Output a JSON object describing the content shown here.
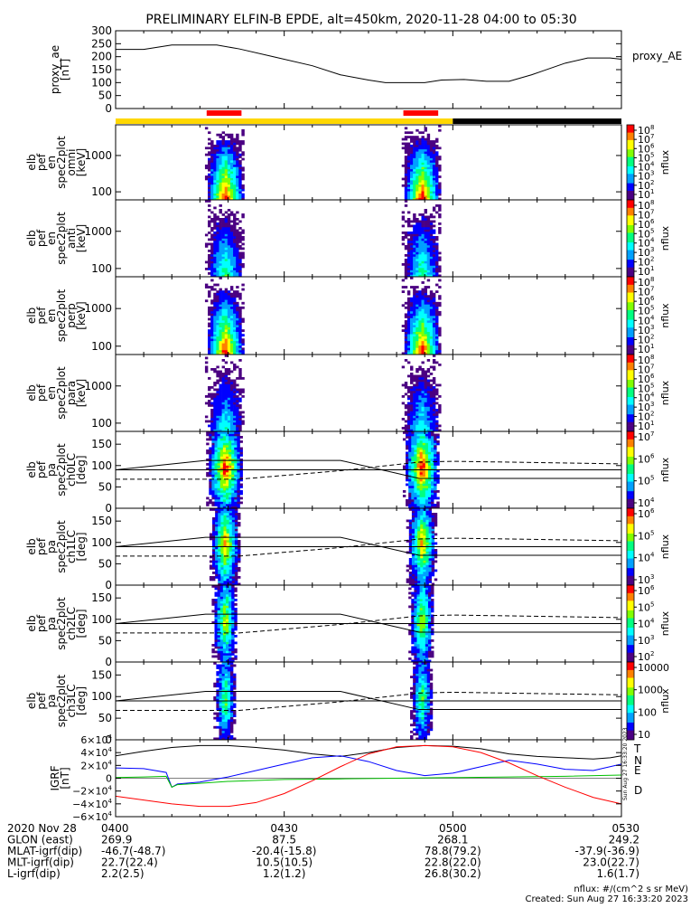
{
  "title": "PRELIMINARY ELFIN-B EPDE, alt=450km, 2020-11-28 04:00 to 05:30",
  "colors": {
    "axis": "#000000",
    "science_zone": "#ff0000",
    "bar_yellow": "#ffd700",
    "bar_black": "#000000",
    "T": "#000000",
    "N": "#0000ff",
    "E": "#00c000",
    "D": "#ff0000",
    "colorbar": [
      "#4b0082",
      "#0000ff",
      "#00a0ff",
      "#00ffff",
      "#00ff80",
      "#80ff00",
      "#ffff00",
      "#ff8000",
      "#ff0000"
    ]
  },
  "time_axis": {
    "start": "04:00",
    "end": "05:30",
    "ticks": [
      {
        "t": 0,
        "label": "0400"
      },
      {
        "t": 30,
        "label": "0430"
      },
      {
        "t": 60,
        "label": "0500"
      },
      {
        "t": 90,
        "label": "0530"
      }
    ]
  },
  "bars": {
    "state": [
      {
        "t0": 0,
        "t1": 60,
        "color": "yellow"
      },
      {
        "t0": 60,
        "t1": 90,
        "color": "black"
      }
    ],
    "science": [
      {
        "t0": 16.2,
        "t1": 22.4
      },
      {
        "t0": 51.2,
        "t1": 57.4
      }
    ]
  },
  "panels": [
    {
      "id": "proxy_ae",
      "kind": "line",
      "ylabel": [
        "proxy_ae",
        "[nT]"
      ],
      "right_label": "proxy_AE",
      "ylim": [
        0,
        300
      ],
      "yticks": [
        0,
        50,
        100,
        150,
        200,
        250,
        300
      ],
      "chart_data": {
        "type": "line",
        "series": [
          {
            "name": "proxy_AE",
            "x": [
              0,
              5,
              10,
              15,
              18,
              22,
              28,
              35,
              40,
              45,
              48,
              50,
              55,
              58,
              62,
              66,
              70,
              74,
              76,
              80,
              84,
              88,
              90
            ],
            "y": [
              228,
              228,
              245,
              245,
              245,
              230,
              200,
              165,
              130,
              110,
              100,
              100,
              100,
              110,
              112,
              105,
              105,
              130,
              145,
              175,
              195,
              195,
              190
            ]
          }
        ]
      }
    },
    {
      "id": "en_omni",
      "kind": "spec",
      "ylabel": [
        "elb",
        "pef",
        "en",
        "spec2plot",
        "omni",
        "[keV]"
      ],
      "ylim": [
        60,
        7000
      ],
      "log": true,
      "yticks": [
        {
          "v": 100,
          "label": "100"
        },
        {
          "v": 1000,
          "label": "1000"
        }
      ],
      "cbar": {
        "label": "nflux",
        "ticks": [
          "10",
          "10",
          "10",
          "10",
          "10",
          "10",
          "10",
          "10"
        ],
        "exps": [
          "1",
          "2",
          "3",
          "4",
          "5",
          "6",
          "7",
          "8"
        ]
      },
      "intensity": 1.0,
      "style": "energy"
    },
    {
      "id": "en_anti",
      "kind": "spec",
      "ylabel": [
        "elb",
        "pef",
        "en",
        "spec2plot",
        "anti",
        "[keV]"
      ],
      "ylim": [
        60,
        7000
      ],
      "log": true,
      "yticks": [
        {
          "v": 100,
          "label": "100"
        },
        {
          "v": 1000,
          "label": "1000"
        }
      ],
      "cbar": {
        "label": "nflux",
        "ticks": [
          "10",
          "10",
          "10",
          "10",
          "10",
          "10",
          "10",
          "10"
        ],
        "exps": [
          "1",
          "2",
          "3",
          "4",
          "5",
          "6",
          "7",
          "8"
        ]
      },
      "intensity": 0.55,
      "style": "energy"
    },
    {
      "id": "en_perp",
      "kind": "spec",
      "ylabel": [
        "elb",
        "pef",
        "en",
        "spec2plot",
        "perp",
        "[keV]"
      ],
      "ylim": [
        60,
        7000
      ],
      "log": true,
      "yticks": [
        {
          "v": 100,
          "label": "100"
        },
        {
          "v": 1000,
          "label": "1000"
        }
      ],
      "cbar": {
        "label": "nflux",
        "ticks": [
          "10",
          "10",
          "10",
          "10",
          "10",
          "10",
          "10",
          "10"
        ],
        "exps": [
          "1",
          "2",
          "3",
          "4",
          "5",
          "6",
          "7",
          "8"
        ]
      },
      "intensity": 1.0,
      "style": "energy"
    },
    {
      "id": "en_para",
      "kind": "spec",
      "ylabel": [
        "elb",
        "pef",
        "en",
        "spec2plot",
        "para",
        "[keV]"
      ],
      "ylim": [
        60,
        7000
      ],
      "log": true,
      "yticks": [
        {
          "v": 100,
          "label": "100"
        },
        {
          "v": 1000,
          "label": "1000"
        }
      ],
      "cbar": {
        "label": "nflux",
        "ticks": [
          "10",
          "10",
          "10",
          "10",
          "10",
          "10",
          "10",
          "10"
        ],
        "exps": [
          "1",
          "2",
          "3",
          "4",
          "5",
          "6",
          "7",
          "8"
        ]
      },
      "intensity": 0.45,
      "style": "energy"
    },
    {
      "id": "pa_ch0",
      "kind": "spec",
      "ylabel": [
        "elb",
        "pef",
        "pa",
        "spec2plot",
        "ch0LC",
        "[deg]"
      ],
      "ylim": [
        0,
        180
      ],
      "log": false,
      "yticks": [
        {
          "v": 0,
          "label": "0"
        },
        {
          "v": 50,
          "label": "50"
        },
        {
          "v": 100,
          "label": "100"
        },
        {
          "v": 150,
          "label": "150"
        }
      ],
      "cbar": {
        "label": "nflux",
        "ticks": [
          "10",
          "10",
          "10",
          "10"
        ],
        "exps": [
          "4",
          "5",
          "6",
          "7"
        ]
      },
      "intensity": 1.0,
      "style": "pa",
      "width": 3.2
    },
    {
      "id": "pa_ch1",
      "kind": "spec",
      "ylabel": [
        "elb",
        "pef",
        "pa",
        "spec2plot",
        "ch1LC",
        "[deg]"
      ],
      "ylim": [
        0,
        180
      ],
      "log": false,
      "yticks": [
        {
          "v": 0,
          "label": "0"
        },
        {
          "v": 50,
          "label": "50"
        },
        {
          "v": 100,
          "label": "100"
        },
        {
          "v": 150,
          "label": "150"
        }
      ],
      "cbar": {
        "label": "nflux",
        "ticks": [
          "10",
          "10",
          "10",
          "10"
        ],
        "exps": [
          "3",
          "4",
          "5",
          "6"
        ]
      },
      "intensity": 0.85,
      "style": "pa",
      "width": 2.6
    },
    {
      "id": "pa_ch2",
      "kind": "spec",
      "ylabel": [
        "elb",
        "pef",
        "pa",
        "spec2plot",
        "ch2LC",
        "[deg]"
      ],
      "ylim": [
        0,
        180
      ],
      "log": false,
      "yticks": [
        {
          "v": 0,
          "label": "0"
        },
        {
          "v": 50,
          "label": "50"
        },
        {
          "v": 100,
          "label": "100"
        },
        {
          "v": 150,
          "label": "150"
        }
      ],
      "cbar": {
        "label": "nflux",
        "ticks": [
          "10",
          "10",
          "10",
          "10",
          "10"
        ],
        "exps": [
          "2",
          "3",
          "4",
          "5",
          "6"
        ]
      },
      "intensity": 0.75,
      "style": "pa",
      "width": 2.2
    },
    {
      "id": "pa_ch3",
      "kind": "spec",
      "ylabel": [
        "elb",
        "pef",
        "pa",
        "spec2plot",
        "ch3LC",
        "[deg]"
      ],
      "ylim": [
        0,
        180
      ],
      "log": false,
      "yticks": [
        {
          "v": 0,
          "label": "0"
        },
        {
          "v": 50,
          "label": "50"
        },
        {
          "v": 100,
          "label": "100"
        },
        {
          "v": 150,
          "label": "150"
        }
      ],
      "cbar": {
        "label": "nflux",
        "ticks": [
          "10",
          "100",
          "1000",
          "10000"
        ],
        "exps": [
          "",
          "",
          "",
          ""
        ]
      },
      "intensity": 0.6,
      "style": "pa",
      "width": 1.9
    },
    {
      "id": "igrf",
      "kind": "igrf",
      "ylabel": [
        "IGRF",
        "[nT]"
      ],
      "ylim": [
        -60000,
        60000
      ],
      "yticks": [
        {
          "v": 60000,
          "m": "6",
          "e": "4",
          "neg": false
        },
        {
          "v": 40000,
          "m": "4",
          "e": "4",
          "neg": false
        },
        {
          "v": 20000,
          "m": "2",
          "e": "4",
          "neg": false
        },
        {
          "v": 0,
          "m": "0",
          "e": "",
          "neg": false
        },
        {
          "v": -20000,
          "m": "2",
          "e": "4",
          "neg": true
        },
        {
          "v": -40000,
          "m": "4",
          "e": "4",
          "neg": true
        },
        {
          "v": -60000,
          "m": "6",
          "e": "4",
          "neg": true
        }
      ],
      "legend": [
        "T",
        "N",
        "E",
        "D"
      ],
      "chart_data": {
        "type": "line",
        "series": [
          {
            "name": "T",
            "x": [
              0,
              5,
              10,
              15,
              20,
              25,
              30,
              35,
              40,
              45,
              50,
              55,
              60,
              65,
              70,
              75,
              80,
              85,
              88,
              90
            ],
            "y": [
              35000,
              42000,
              48000,
              51000,
              51000,
              48000,
              44000,
              38000,
              34000,
              40000,
              48000,
              51000,
              50000,
              46000,
              38000,
              34000,
              32000,
              30000,
              32000,
              35000
            ]
          },
          {
            "name": "N",
            "x": [
              0,
              5,
              9,
              10,
              11,
              15,
              20,
              25,
              30,
              35,
              40,
              45,
              50,
              55,
              60,
              65,
              70,
              75,
              80,
              85,
              90
            ],
            "y": [
              16000,
              15000,
              9000,
              -14000,
              -9000,
              -6000,
              2000,
              12000,
              22000,
              32000,
              35000,
              26000,
              12000,
              4000,
              8000,
              18000,
              28000,
              22000,
              14000,
              12000,
              22000
            ]
          },
          {
            "name": "E",
            "x": [
              0,
              5,
              9,
              10,
              11,
              15,
              20,
              30,
              40,
              50,
              60,
              70,
              80,
              90
            ],
            "y": [
              1000,
              2000,
              3000,
              -14000,
              -10000,
              -8000,
              -5000,
              -2000,
              -1000,
              0,
              1000,
              2000,
              3000,
              5000
            ]
          },
          {
            "name": "D",
            "x": [
              0,
              5,
              10,
              15,
              20,
              25,
              30,
              35,
              40,
              45,
              50,
              55,
              60,
              65,
              70,
              75,
              80,
              85,
              90
            ],
            "y": [
              -28000,
              -34000,
              -40000,
              -44000,
              -44000,
              -38000,
              -24000,
              -4000,
              18000,
              38000,
              49000,
              51000,
              49000,
              40000,
              24000,
              4000,
              -14000,
              -30000,
              -40000
            ]
          }
        ]
      }
    }
  ],
  "pa_lines": {
    "solid_upper": {
      "x": [
        0,
        16,
        22,
        40,
        54,
        60,
        90
      ],
      "y": [
        90,
        112,
        112,
        112,
        70,
        70,
        70
      ]
    },
    "solid_lower": {
      "x": [
        0,
        90
      ],
      "y": [
        90,
        90
      ]
    },
    "dashed": {
      "x": [
        0,
        16,
        22,
        40,
        54,
        60,
        90
      ],
      "y": [
        68,
        68,
        68,
        88,
        108,
        110,
        104
      ]
    }
  },
  "created_stamp": "Sun Aug 27 16:33:20 2023",
  "footer": {
    "rows": [
      {
        "label": "2020 Nov 28",
        "values": [
          "0400",
          "0430",
          "0500",
          "0530"
        ]
      },
      {
        "label": "GLON (east)",
        "values": [
          "269.9",
          "87.5",
          "268.1",
          "249.2"
        ]
      },
      {
        "label": "MLAT-igrf(dip)",
        "values": [
          "-46.7(-48.7)",
          "-20.4(-15.8)",
          "78.8(79.2)",
          "-37.9(-36.9)"
        ]
      },
      {
        "label": "MLT-igrf(dip)",
        "values": [
          "22.7(22.4)",
          "10.5(10.5)",
          "22.8(22.0)",
          "23.0(22.7)"
        ]
      },
      {
        "label": "L-igrf(dip)",
        "values": [
          "2.2(2.5)",
          "1.2(1.2)",
          "26.8(30.2)",
          "1.6(1.7)"
        ]
      }
    ],
    "units_note": "nflux: #/(cm^2 s sr MeV)",
    "created": "Created: Sun Aug 27 16:33:20 2023"
  }
}
